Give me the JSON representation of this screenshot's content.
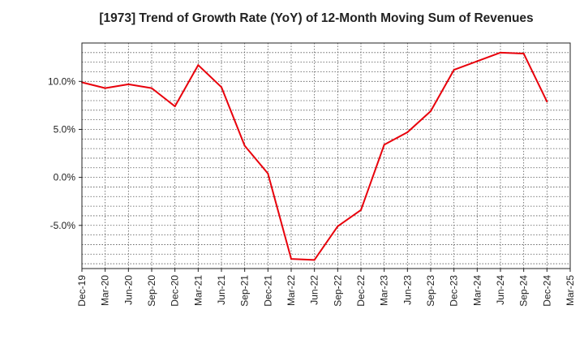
{
  "chart_data": {
    "type": "line",
    "title": "[1973]  Trend of Growth Rate (YoY) of 12-Month Moving Sum of Revenues",
    "xlabel": "",
    "ylabel": "",
    "x_tick_labels": [
      "Dec-19",
      "Mar-20",
      "Jun-20",
      "Sep-20",
      "Dec-20",
      "Mar-21",
      "Jun-21",
      "Sep-21",
      "Dec-21",
      "Mar-22",
      "Jun-22",
      "Sep-22",
      "Dec-22",
      "Mar-23",
      "Jun-23",
      "Sep-23",
      "Dec-23",
      "Mar-24",
      "Jun-24",
      "Sep-24",
      "Dec-24",
      "Mar-25"
    ],
    "y_ticks": [
      -5,
      0,
      5,
      10
    ],
    "y_tick_labels": [
      "-5.0%",
      "0.0%",
      "5.0%",
      "10.0%"
    ],
    "ylim": [
      -9.5,
      14
    ],
    "grid": true,
    "series": [
      {
        "color": "#e8000b",
        "x": [
          "Dec-19",
          "Mar-20",
          "Jun-20",
          "Sep-20",
          "Dec-20",
          "Mar-21",
          "Jun-21",
          "Sep-21",
          "Dec-21",
          "Mar-22",
          "Jun-22",
          "Sep-22",
          "Dec-22",
          "Mar-23",
          "Jun-23",
          "Sep-23",
          "Dec-23",
          "Mar-24",
          "Jun-24",
          "Sep-24",
          "Dec-24"
        ],
        "values": [
          9.9,
          9.3,
          9.7,
          9.3,
          7.4,
          11.7,
          9.4,
          3.3,
          0.4,
          -8.5,
          -8.6,
          -5.1,
          -3.4,
          3.4,
          4.7,
          6.9,
          11.2,
          12.1,
          13.0,
          12.9,
          7.9
        ]
      }
    ]
  }
}
